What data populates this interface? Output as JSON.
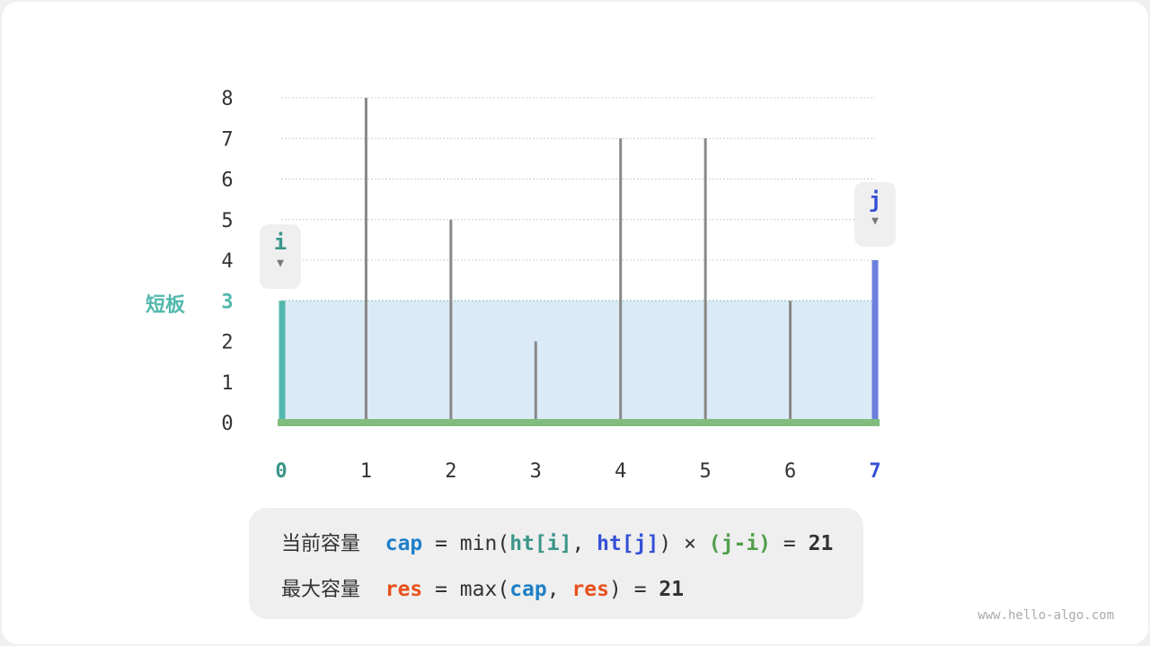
{
  "heights": [
    3,
    8,
    5,
    2,
    7,
    7,
    3,
    4
  ],
  "x_ticks": [
    "0",
    "1",
    "2",
    "3",
    "4",
    "5",
    "6",
    "7"
  ],
  "y_ticks": [
    "0",
    "1",
    "2",
    "3",
    "4",
    "5",
    "6",
    "7",
    "8"
  ],
  "i_index": 0,
  "j_index": 7,
  "short_board_label": "短板",
  "pointer_i": "i",
  "pointer_j": "j",
  "pointer_arrow": "▼",
  "colors": {
    "i": "#52b8ad",
    "j": "#6b80dd",
    "bar": "#888888",
    "base": "#82bd80",
    "water": "#dbeaf7",
    "cap": "#1f7fc8",
    "res": "#e8501c",
    "ht_i": "#3a9688",
    "ht_j": "#3550d6",
    "ji": "#529e4c"
  },
  "formula": {
    "line1": {
      "label": "当前容量",
      "cap": "cap",
      "eq": " = min(",
      "ht_i": "ht[i]",
      "comma": ", ",
      "ht_j": "ht[j]",
      "close": ") × ",
      "ji": "(j-i)",
      "eq2": " = ",
      "value": "21"
    },
    "line2": {
      "label": "最大容量",
      "res": "res",
      "eq": " = max(",
      "cap": "cap",
      "comma": ", ",
      "res2": "res",
      "close": ") = ",
      "value": "21"
    }
  },
  "watermark": "www.hello-algo.com"
}
